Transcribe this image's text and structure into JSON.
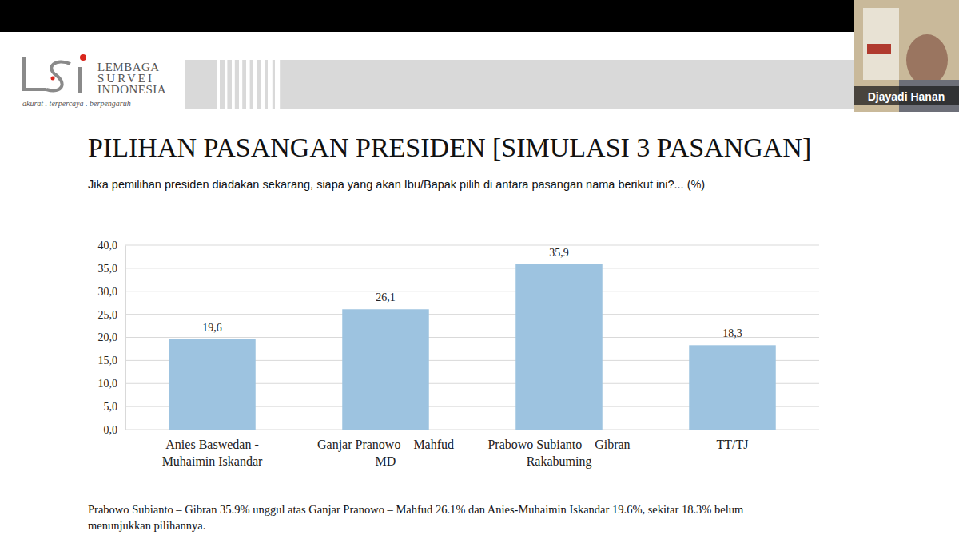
{
  "header": {
    "logo_lines": [
      "LEMBAGA",
      "SURVEI",
      "INDONESIA"
    ],
    "tagline": "akurat . terpercaya . berpengaruh",
    "presenter": "Djayadi Hanan"
  },
  "chart_data": {
    "type": "bar",
    "title": "PILIHAN PASANGAN PRESIDEN [SIMULASI 3 PASANGAN]",
    "subtitle": "Jika pemilihan presiden diadakan sekarang, siapa yang akan Ibu/Bapak pilih di antara pasangan nama berikut ini?... (%)",
    "categories": [
      "Anies Baswedan -\nMuhaimin Iskandar",
      "Ganjar Pranowo – Mahfud\nMD",
      "Prabowo Subianto – Gibran\nRakabuming",
      "TT/TJ"
    ],
    "values": [
      19.6,
      26.1,
      35.9,
      18.3
    ],
    "value_labels": [
      "19,6",
      "26,1",
      "35,9",
      "18,3"
    ],
    "color": "#9dc3e0",
    "ylim": [
      0,
      40
    ],
    "yticks": [
      {
        "value": 0,
        "label": "0,0"
      },
      {
        "value": 5,
        "label": "5,0"
      },
      {
        "value": 10,
        "label": "10,0"
      },
      {
        "value": 15,
        "label": "15,0"
      },
      {
        "value": 20,
        "label": "20,0"
      },
      {
        "value": 25,
        "label": "25,0"
      },
      {
        "value": 30,
        "label": "30,0"
      },
      {
        "value": 35,
        "label": "35,0"
      },
      {
        "value": 40,
        "label": "40,0"
      }
    ],
    "grid": true,
    "data_labels": true,
    "annotations": [
      "Prabowo Subianto – Gibran 35.9% unggul atas Ganjar Pranowo – Mahfud 26.1% dan Anies-Muhaimin Iskandar 19.6%, sekitar 18.3% belum\nmenunjukkan pilihannya."
    ]
  }
}
